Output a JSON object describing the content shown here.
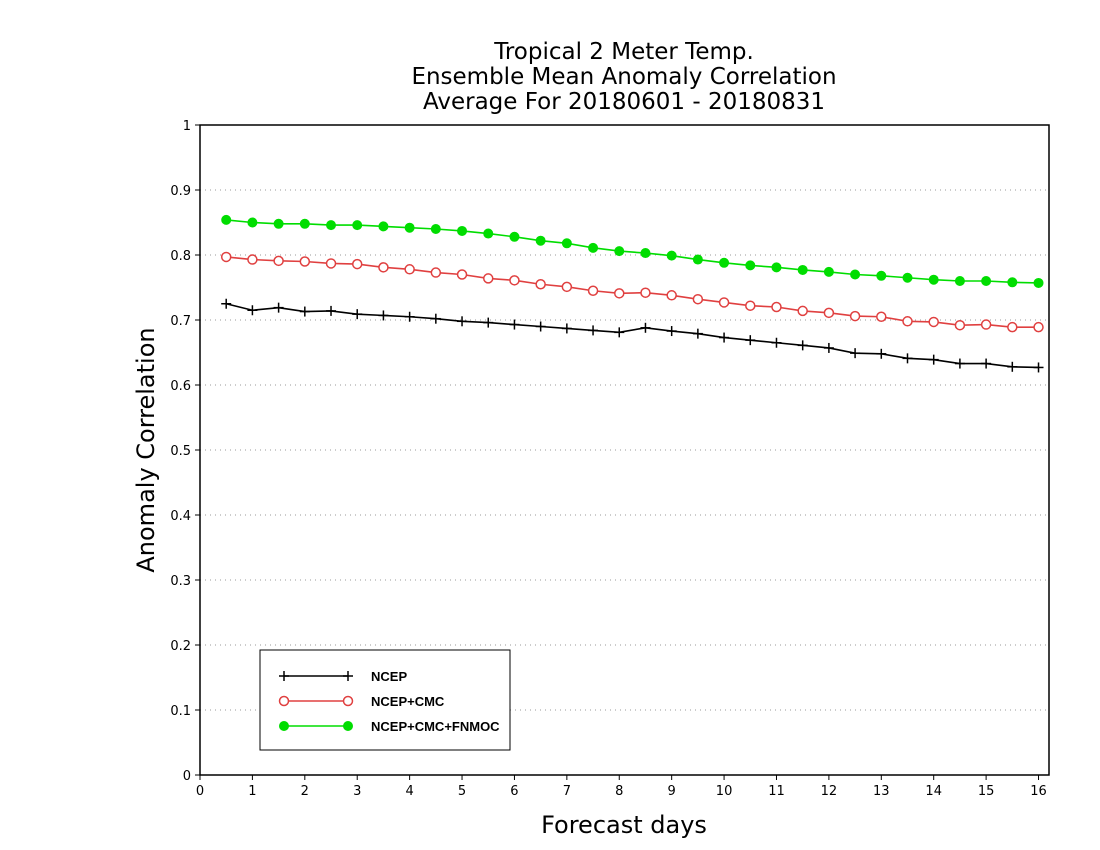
{
  "chart_data": {
    "type": "line",
    "title": [
      "Tropical 2 Meter Temp.",
      "Ensemble Mean Anomaly Correlation",
      "Average For 20180601 - 20180831"
    ],
    "xlabel": "Forecast days",
    "ylabel": "Anomaly Correlation",
    "xlim": [
      0,
      16.2
    ],
    "ylim": [
      0,
      1
    ],
    "xticks": [
      "0",
      "1",
      "2",
      "3",
      "4",
      "5",
      "6",
      "7",
      "8",
      "9",
      "10",
      "11",
      "12",
      "13",
      "14",
      "15",
      "16"
    ],
    "yticks": [
      "0",
      "0.1",
      "0.2",
      "0.3",
      "0.4",
      "0.5",
      "0.6",
      "0.7",
      "0.8",
      "0.9",
      "1"
    ],
    "grid": "horizontal dotted",
    "legend_position": "bottom-left",
    "x": [
      0.5,
      1,
      1.5,
      2,
      2.5,
      3,
      3.5,
      4,
      4.5,
      5,
      5.5,
      6,
      6.5,
      7,
      7.5,
      8,
      8.5,
      9,
      9.5,
      10,
      10.5,
      11,
      11.5,
      12,
      12.5,
      13,
      13.5,
      14,
      14.5,
      15,
      15.5,
      16
    ],
    "series": [
      {
        "name": "NCEP",
        "color": "#000000",
        "marker": "plus",
        "values": [
          0.725,
          0.715,
          0.719,
          0.713,
          0.714,
          0.709,
          0.707,
          0.705,
          0.702,
          0.698,
          0.696,
          0.693,
          0.69,
          0.687,
          0.684,
          0.681,
          0.688,
          0.683,
          0.679,
          0.673,
          0.669,
          0.665,
          0.661,
          0.657,
          0.649,
          0.648,
          0.641,
          0.639,
          0.633,
          0.633,
          0.628,
          0.627
        ]
      },
      {
        "name": "NCEP+CMC",
        "color": "#e04040",
        "marker": "open-circle",
        "values": [
          0.797,
          0.793,
          0.791,
          0.79,
          0.787,
          0.786,
          0.781,
          0.778,
          0.773,
          0.77,
          0.764,
          0.761,
          0.755,
          0.751,
          0.745,
          0.741,
          0.742,
          0.738,
          0.732,
          0.727,
          0.722,
          0.72,
          0.714,
          0.711,
          0.706,
          0.705,
          0.698,
          0.697,
          0.692,
          0.693,
          0.689,
          0.689
        ]
      },
      {
        "name": "NCEP+CMC+FNMOC",
        "color": "#00dd00",
        "marker": "filled-circle",
        "values": [
          0.854,
          0.85,
          0.848,
          0.848,
          0.846,
          0.846,
          0.844,
          0.842,
          0.84,
          0.837,
          0.833,
          0.828,
          0.822,
          0.818,
          0.811,
          0.806,
          0.803,
          0.799,
          0.793,
          0.788,
          0.784,
          0.781,
          0.777,
          0.774,
          0.77,
          0.768,
          0.765,
          0.762,
          0.76,
          0.76,
          0.758,
          0.757
        ]
      }
    ]
  }
}
